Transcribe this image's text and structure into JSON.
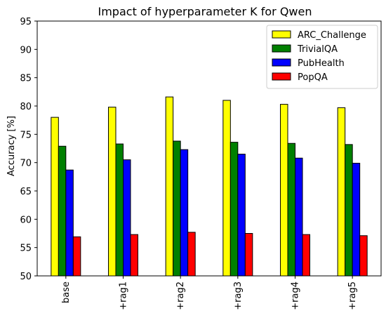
{
  "chart_data": {
    "type": "bar",
    "title": "Impact of hyperparameter K for Qwen",
    "xlabel": "",
    "ylabel": "Accuracy [%]",
    "ylim": [
      50,
      95
    ],
    "yticks": [
      50,
      55,
      60,
      65,
      70,
      75,
      80,
      85,
      90,
      95
    ],
    "categories": [
      "base",
      "+rag1",
      "+rag2",
      "+rag3",
      "+rag4",
      "+rag5"
    ],
    "grid": false,
    "legend_position": "top-right",
    "series": [
      {
        "name": "ARC_Challenge",
        "color": "#ffff00",
        "values": [
          78.0,
          79.8,
          81.6,
          81.0,
          80.3,
          79.7
        ]
      },
      {
        "name": "TrivialQA",
        "color": "#008000",
        "values": [
          72.9,
          73.3,
          73.8,
          73.6,
          73.4,
          73.2
        ]
      },
      {
        "name": "PubHealth",
        "color": "#0000ff",
        "values": [
          68.7,
          70.5,
          72.3,
          71.5,
          70.8,
          69.9
        ]
      },
      {
        "name": "PopQA",
        "color": "#ff0000",
        "values": [
          56.9,
          57.3,
          57.7,
          57.5,
          57.3,
          57.1
        ]
      }
    ]
  }
}
